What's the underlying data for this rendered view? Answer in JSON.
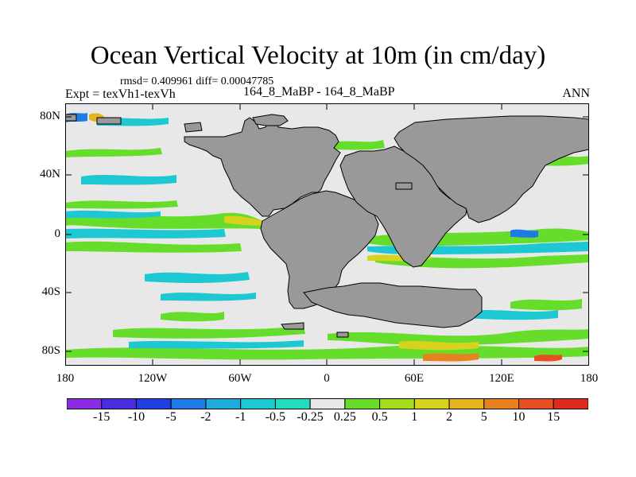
{
  "title": "Ocean Vertical Velocity at 10m (in cm/day)",
  "stats": "rmsd= 0.409961 diff= 0.00047785",
  "experiment": "Expt = texVh1-texVh",
  "case_label": "164_8_MaBP - 164_8_MaBP",
  "season": "ANN",
  "lat_labels": [
    "80N",
    "40N",
    "0",
    "40S",
    "80S"
  ],
  "lon_labels": [
    "180",
    "120W",
    "60W",
    "0",
    "60E",
    "120E",
    "180"
  ],
  "colorbar": {
    "labels": [
      "-15",
      "-10",
      "-5",
      "-2",
      "-1",
      "-0.5",
      "-0.25",
      "0.25",
      "0.5",
      "1",
      "2",
      "5",
      "10",
      "15"
    ],
    "colors": [
      "#8b2be2",
      "#4b2be0",
      "#1f3fe0",
      "#1e7ae6",
      "#1eaadc",
      "#1ec8d2",
      "#22dcc0",
      "#e8e8e8",
      "#66dd2a",
      "#a8dc1e",
      "#d6d21e",
      "#e6b41e",
      "#e8821e",
      "#e6501e",
      "#e02a1e"
    ]
  },
  "colors": {
    "land": "#999999",
    "ocean_neutral": "#e8e8e8"
  }
}
